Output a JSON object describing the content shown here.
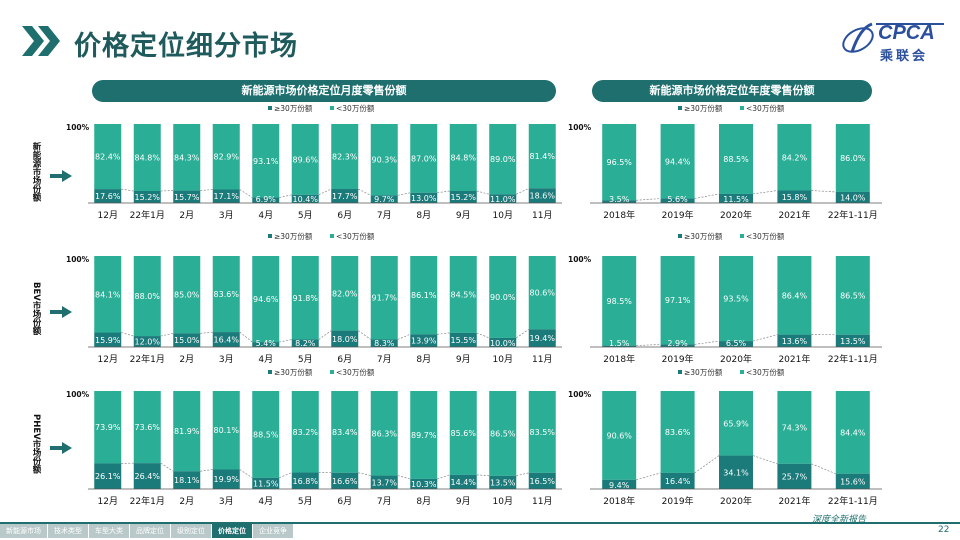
{
  "page": {
    "title": "价格定位细分市场",
    "page_number": "22",
    "slogan": "深度全新报告",
    "logo": {
      "text": "CPCA",
      "cn": "乘联会"
    }
  },
  "headers": {
    "monthly": "新能源市场价格定位月度零售份额",
    "yearly": "新能源市场价格定位年度零售份额"
  },
  "legend": {
    "high": "≥30万份额",
    "low": "<30万份额"
  },
  "colors": {
    "high": "#1b7a7a",
    "low": "#2aae96",
    "line": "#888888",
    "header": "#1f6f6f"
  },
  "nav": {
    "items": [
      "新能源市场",
      "技术类型",
      "车型大类",
      "品牌定位",
      "级别定位",
      "价格定位",
      "企业竞争"
    ],
    "active": 5
  },
  "chart_data": [
    {
      "type": "bar",
      "stacked": true,
      "id": "nev-monthly",
      "row_label": "新能源市场份额",
      "ylabel_top": "100%",
      "categories": [
        "12月",
        "22年1月",
        "2月",
        "3月",
        "4月",
        "5月",
        "6月",
        "7月",
        "8月",
        "9月",
        "10月",
        "11月"
      ],
      "series": [
        {
          "name": "≥30万份额",
          "values": [
            17.6,
            15.2,
            15.7,
            17.1,
            6.9,
            10.4,
            17.7,
            9.7,
            13.0,
            15.2,
            11.0,
            18.6
          ],
          "labels": [
            "17.6%",
            "15.2%",
            "15.7%",
            "17.1%",
            "6.9%",
            "10.4%",
            "17.7%",
            "9.7%",
            "13.0%",
            "15.2%",
            "11.0%",
            "18.6%"
          ]
        },
        {
          "name": "<30万份额",
          "values": [
            82.4,
            84.8,
            84.3,
            82.9,
            93.1,
            89.6,
            82.3,
            90.3,
            87.0,
            84.8,
            89.0,
            81.4
          ],
          "labels": [
            "82.4%",
            "84.8%",
            "84.3%",
            "82.9%",
            "93.1%",
            "89.6%",
            "82.3%",
            "90.3%",
            "87.0%",
            "84.8%",
            "89.0%",
            "81.4%"
          ]
        }
      ]
    },
    {
      "type": "bar",
      "stacked": true,
      "id": "nev-yearly",
      "row_label": "新能源市场份额",
      "ylabel_top": "100%",
      "categories": [
        "2018年",
        "2019年",
        "2020年",
        "2021年",
        "22年1-11月"
      ],
      "series": [
        {
          "name": "≥30万份额",
          "values": [
            3.5,
            5.6,
            11.5,
            15.8,
            14.0
          ],
          "labels": [
            "3.5%",
            "5.6%",
            "11.5%",
            "15.8%",
            "14.0%"
          ]
        },
        {
          "name": "<30万份额",
          "values": [
            96.5,
            94.4,
            88.5,
            84.2,
            86.0
          ],
          "labels": [
            "96.5%",
            "94.4%",
            "88.5%",
            "84.2%",
            "86.0%"
          ]
        }
      ]
    },
    {
      "type": "bar",
      "stacked": true,
      "id": "bev-monthly",
      "row_label": "BEV市场份额",
      "ylabel_top": "100%",
      "categories": [
        "12月",
        "22年1月",
        "2月",
        "3月",
        "4月",
        "5月",
        "6月",
        "7月",
        "8月",
        "9月",
        "10月",
        "11月"
      ],
      "series": [
        {
          "name": "≥30万份额",
          "values": [
            15.9,
            12.0,
            15.0,
            16.4,
            5.4,
            8.2,
            18.0,
            8.3,
            13.9,
            15.5,
            10.0,
            19.4
          ],
          "labels": [
            "15.9%",
            "12.0%",
            "15.0%",
            "16.4%",
            "5.4%",
            "8.2%",
            "18.0%",
            "8.3%",
            "13.9%",
            "15.5%",
            "10.0%",
            "19.4%"
          ]
        },
        {
          "name": "<30万份额",
          "values": [
            84.1,
            88.0,
            85.0,
            83.6,
            94.6,
            91.8,
            82.0,
            91.7,
            86.1,
            84.5,
            90.0,
            80.6
          ],
          "labels": [
            "84.1%",
            "88.0%",
            "85.0%",
            "83.6%",
            "94.6%",
            "91.8%",
            "82.0%",
            "91.7%",
            "86.1%",
            "84.5%",
            "90.0%",
            "80.6%"
          ]
        }
      ]
    },
    {
      "type": "bar",
      "stacked": true,
      "id": "bev-yearly",
      "row_label": "BEV市场份额",
      "ylabel_top": "100%",
      "categories": [
        "2018年",
        "2019年",
        "2020年",
        "2021年",
        "22年1-11月"
      ],
      "series": [
        {
          "name": "≥30万份额",
          "values": [
            1.5,
            2.9,
            6.5,
            13.6,
            13.5
          ],
          "labels": [
            "1.5%",
            "2.9%",
            "6.5%",
            "13.6%",
            "13.5%"
          ]
        },
        {
          "name": "<30万份额",
          "values": [
            98.5,
            97.1,
            93.5,
            86.4,
            86.5
          ],
          "labels": [
            "98.5%",
            "97.1%",
            "93.5%",
            "86.4%",
            "86.5%"
          ]
        }
      ]
    },
    {
      "type": "bar",
      "stacked": true,
      "id": "phev-monthly",
      "row_label": "PHEV市场份额",
      "ylabel_top": "100%",
      "categories": [
        "12月",
        "22年1月",
        "2月",
        "3月",
        "4月",
        "5月",
        "6月",
        "7月",
        "8月",
        "9月",
        "10月",
        "11月"
      ],
      "series": [
        {
          "name": "≥30万份额",
          "values": [
            26.1,
            26.4,
            18.1,
            19.9,
            11.5,
            16.8,
            16.6,
            13.7,
            10.3,
            14.4,
            13.5,
            16.5
          ],
          "labels": [
            "26.1%",
            "26.4%",
            "18.1%",
            "19.9%",
            "11.5%",
            "16.8%",
            "16.6%",
            "13.7%",
            "10.3%",
            "14.4%",
            "13.5%",
            "16.5%"
          ]
        },
        {
          "name": "<30万份额",
          "values": [
            73.9,
            73.6,
            81.9,
            80.1,
            88.5,
            83.2,
            83.4,
            86.3,
            89.7,
            85.6,
            86.5,
            83.5
          ],
          "labels": [
            "73.9%",
            "73.6%",
            "81.9%",
            "80.1%",
            "88.5%",
            "83.2%",
            "83.4%",
            "86.3%",
            "89.7%",
            "85.6%",
            "86.5%",
            "83.5%"
          ]
        }
      ]
    },
    {
      "type": "bar",
      "stacked": true,
      "id": "phev-yearly",
      "row_label": "PHEV市场份额",
      "ylabel_top": "100%",
      "categories": [
        "2018年",
        "2019年",
        "2020年",
        "2021年",
        "22年1-11月"
      ],
      "series": [
        {
          "name": "≥30万份额",
          "values": [
            9.4,
            16.4,
            34.1,
            25.7,
            15.6
          ],
          "labels": [
            "9.4%",
            "16.4%",
            "34.1%",
            "25.7%",
            "15.6%"
          ]
        },
        {
          "name": "<30万份额",
          "values": [
            90.6,
            83.6,
            65.9,
            74.3,
            84.4
          ],
          "labels": [
            "90.6%",
            "83.6%",
            "65.9%",
            "74.3%",
            "84.4%"
          ]
        }
      ]
    }
  ]
}
